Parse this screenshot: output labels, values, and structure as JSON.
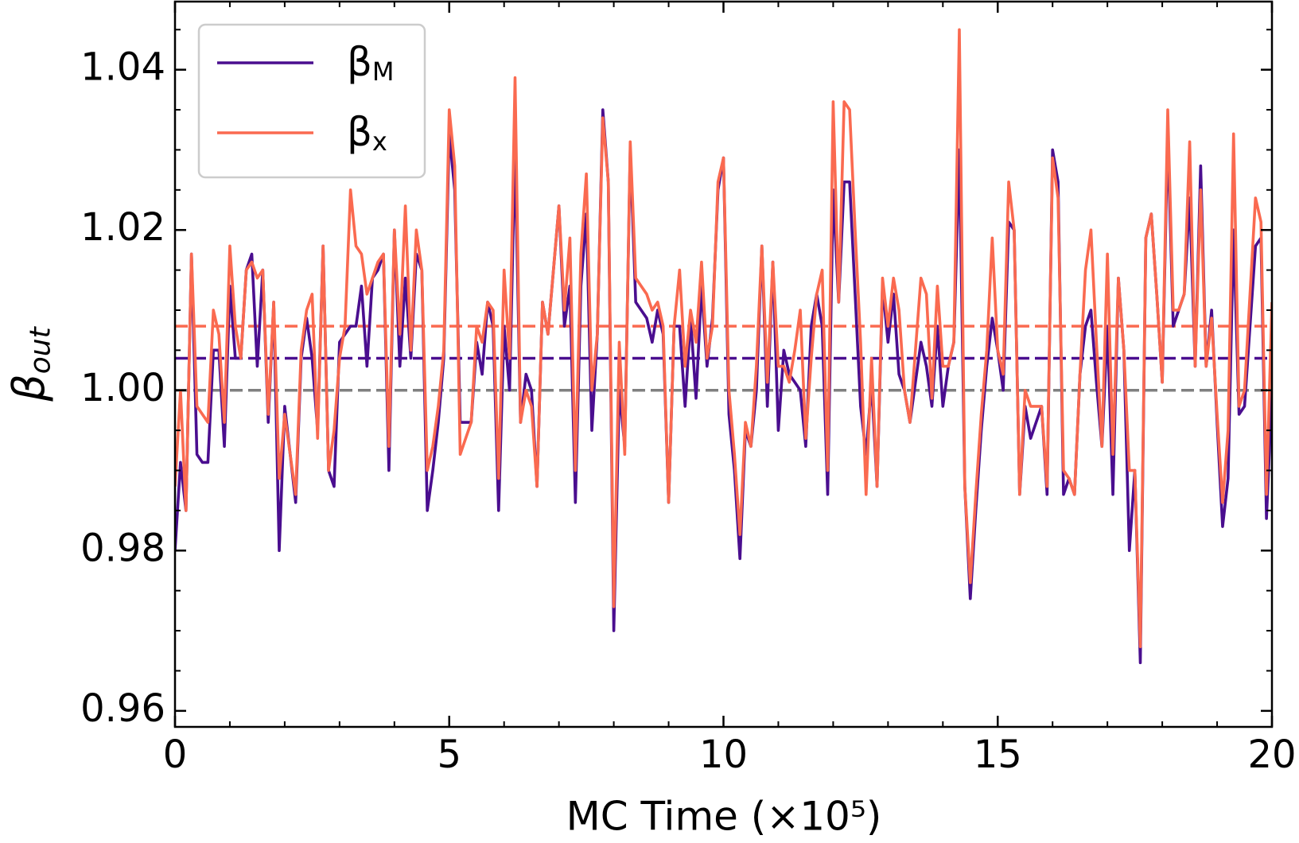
{
  "chart_data": {
    "type": "line",
    "xlabel": "MC Time (×10⁵)",
    "ylabel": "βout",
    "xlim": [
      0,
      20
    ],
    "ylim": [
      0.958,
      1.0485
    ],
    "xticks": [
      0,
      5,
      10,
      15,
      20
    ],
    "yticks": [
      0.96,
      0.98,
      {
        "value": 1,
        "label": "1.00"
      },
      1.02,
      1.04
    ],
    "xminorticks": [
      1,
      2,
      3,
      4,
      6,
      7,
      8,
      9,
      11,
      12,
      13,
      14,
      16,
      17,
      18,
      19
    ],
    "yminorticks": [
      0.965,
      0.97,
      0.975,
      0.985,
      0.99,
      0.995,
      1.005,
      1.01,
      1.015,
      1.025,
      1.03,
      1.035,
      1.045
    ],
    "legend": "upper left",
    "hlines": [
      {
        "value": 1.0,
        "color": "#808080"
      },
      {
        "value": 1.004,
        "color": "#4a0e8f"
      },
      {
        "value": 1.008,
        "color": "#fa6a50"
      }
    ],
    "x": [
      0,
      0.1,
      0.2,
      0.3,
      0.4,
      0.5,
      0.6,
      0.7,
      0.8,
      0.9,
      1,
      1.1,
      1.2,
      1.3,
      1.4,
      1.5,
      1.6,
      1.7,
      1.8,
      1.9,
      2,
      2.1,
      2.2,
      2.3,
      2.4,
      2.5,
      2.6,
      2.7,
      2.8,
      2.9,
      3,
      3.1,
      3.2,
      3.3,
      3.4,
      3.5,
      3.6,
      3.7,
      3.8,
      3.9,
      4,
      4.1,
      4.2,
      4.3,
      4.4,
      4.5,
      4.6,
      4.7,
      4.8,
      4.9,
      5,
      5.1,
      5.2,
      5.3,
      5.4,
      5.5,
      5.6,
      5.7,
      5.8,
      5.9,
      6,
      6.1,
      6.2,
      6.3,
      6.4,
      6.5,
      6.6,
      6.7,
      6.8,
      6.9,
      7,
      7.1,
      7.2,
      7.3,
      7.4,
      7.5,
      7.6,
      7.7,
      7.8,
      7.9,
      8,
      8.1,
      8.2,
      8.3,
      8.4,
      8.5,
      8.6,
      8.7,
      8.8,
      8.9,
      9,
      9.1,
      9.2,
      9.3,
      9.4,
      9.5,
      9.6,
      9.7,
      9.8,
      9.9,
      10,
      10.1,
      10.2,
      10.3,
      10.4,
      10.5,
      10.6,
      10.7,
      10.8,
      10.9,
      11,
      11.1,
      11.2,
      11.3,
      11.4,
      11.5,
      11.6,
      11.7,
      11.8,
      11.9,
      12,
      12.1,
      12.2,
      12.3,
      12.4,
      12.5,
      12.6,
      12.7,
      12.8,
      12.9,
      13,
      13.1,
      13.2,
      13.3,
      13.4,
      13.5,
      13.6,
      13.7,
      13.8,
      13.9,
      14,
      14.1,
      14.2,
      14.3,
      14.4,
      14.5,
      14.6,
      14.7,
      14.8,
      14.9,
      15,
      15.1,
      15.2,
      15.3,
      15.4,
      15.5,
      15.6,
      15.7,
      15.8,
      15.9,
      16,
      16.1,
      16.2,
      16.3,
      16.4,
      16.5,
      16.6,
      16.7,
      16.8,
      16.9,
      17,
      17.1,
      17.2,
      17.3,
      17.4,
      17.5,
      17.6,
      17.7,
      17.8,
      17.9,
      18,
      18.1,
      18.2,
      18.3,
      18.4,
      18.5,
      18.6,
      18.7,
      18.8,
      18.9,
      19,
      19.1,
      19.2,
      19.3,
      19.4,
      19.5,
      19.6,
      19.7,
      19.8,
      19.9,
      20
    ],
    "series": [
      {
        "name": "βM",
        "color": "#4a0e8f",
        "values": [
          0.98,
          0.991,
          0.985,
          1.017,
          0.992,
          0.991,
          0.991,
          1.005,
          1.005,
          0.993,
          1.013,
          1.004,
          1.004,
          1.015,
          1.017,
          1.003,
          1.015,
          0.996,
          1.011,
          0.98,
          0.998,
          0.992,
          0.986,
          1.004,
          1.009,
          1.004,
          0.995,
          1.018,
          0.99,
          0.988,
          1.006,
          1.007,
          1.008,
          1.008,
          1.013,
          1.003,
          1.014,
          1.015,
          1.017,
          0.99,
          1.02,
          1.003,
          1.014,
          1.004,
          1.017,
          1.015,
          0.985,
          0.99,
          0.996,
          1.004,
          1.032,
          1.025,
          0.996,
          0.996,
          0.996,
          1.006,
          1.002,
          1.011,
          1.008,
          0.985,
          1.008,
          1.0,
          1.03,
          0.996,
          1.002,
          1.0,
          0.988,
          1.011,
          1.007,
          1.015,
          1.023,
          1.008,
          1.013,
          0.986,
          1.013,
          1.022,
          0.995,
          1.007,
          1.035,
          1.026,
          0.97,
          1.0,
          0.993,
          1.03,
          1.011,
          1.01,
          1.009,
          1.006,
          1.01,
          1.007,
          0.986,
          1.008,
          1.008,
          0.998,
          1.009,
          0.999,
          1.013,
          1.003,
          1.009,
          1.025,
          1.029,
          0.997,
          0.99,
          0.979,
          0.995,
          0.993,
          1.0,
          1.018,
          0.998,
          1.016,
          0.995,
          1.005,
          1.002,
          1.001,
          1.0,
          0.993,
          1.008,
          1.012,
          1.008,
          0.987,
          1.025,
          1.011,
          1.026,
          1.026,
          1.012,
          0.998,
          0.992,
          1.001,
          0.988,
          1.013,
          1.006,
          1.012,
          1.002,
          1.0,
          0.996,
          1.001,
          1.006,
          1.003,
          0.998,
          1.008,
          0.998,
          1.003,
          1.006,
          1.03,
          0.988,
          0.974,
          0.985,
          0.995,
          1.003,
          1.009,
          1.005,
          1.0,
          1.021,
          1.02,
          0.987,
          0.998,
          0.994,
          0.996,
          0.998,
          0.987,
          1.03,
          1.026,
          0.987,
          0.989,
          0.987,
          1.002,
          1.008,
          1.01,
          1.001,
          0.993,
          1.008,
          0.987,
          1.014,
          1.005,
          0.98,
          0.99,
          0.966,
          1.019,
          1.022,
          1.012,
          1.001,
          1.032,
          1.008,
          1.01,
          1.012,
          1.024,
          1.003,
          1.028,
          1.003,
          1.01,
          0.996,
          0.983,
          0.989,
          1.02,
          0.997,
          0.998,
          1.008,
          1.018,
          1.019,
          0.984,
          1.0
        ]
      },
      {
        "name": "βx",
        "color": "#fa6a50",
        "values": [
          0.988,
          1.0,
          0.985,
          1.017,
          0.998,
          0.997,
          0.996,
          1.01,
          1.007,
          0.996,
          1.018,
          1.008,
          1.004,
          1.015,
          1.016,
          1.014,
          1.015,
          0.997,
          1.011,
          0.989,
          0.997,
          0.992,
          0.987,
          1.005,
          1.01,
          1.012,
          0.994,
          1.018,
          0.99,
          0.995,
          1.004,
          1.008,
          1.025,
          1.018,
          1.017,
          1.012,
          1.014,
          1.016,
          1.017,
          0.993,
          1.02,
          1.007,
          1.023,
          1.005,
          1.02,
          1.015,
          0.99,
          0.993,
          0.998,
          1.005,
          1.035,
          1.028,
          0.992,
          0.994,
          0.996,
          1.008,
          1.006,
          1.011,
          1.01,
          0.989,
          1.015,
          1.004,
          1.039,
          0.996,
          1.0,
          0.998,
          0.988,
          1.011,
          1.007,
          1.015,
          1.023,
          1.01,
          1.019,
          0.99,
          1.017,
          1.027,
          1.0,
          1.007,
          1.034,
          1.026,
          0.973,
          1.006,
          0.992,
          1.031,
          1.014,
          1.013,
          1.012,
          1.01,
          1.011,
          1.008,
          0.986,
          1.008,
          1.015,
          1.003,
          1.01,
          1.006,
          1.016,
          1.004,
          1.008,
          1.026,
          1.029,
          1.0,
          0.992,
          0.982,
          0.996,
          0.993,
          1.003,
          1.018,
          1.001,
          1.016,
          1.003,
          1.003,
          1.001,
          1.005,
          1.01,
          0.994,
          1.004,
          1.012,
          1.015,
          0.99,
          1.036,
          1.011,
          1.036,
          1.035,
          1.02,
          1.006,
          0.987,
          1.004,
          0.988,
          1.014,
          1.008,
          1.014,
          1.01,
          1.0,
          0.996,
          1.005,
          1.014,
          1.012,
          0.999,
          1.013,
          1.003,
          1.003,
          1.006,
          1.045,
          0.988,
          0.976,
          0.987,
          0.997,
          1.005,
          1.019,
          1.005,
          1.002,
          1.026,
          1.02,
          0.987,
          1.0,
          0.998,
          0.998,
          0.998,
          0.988,
          1.029,
          1.024,
          0.99,
          0.989,
          0.987,
          1.002,
          1.015,
          1.02,
          1.006,
          0.993,
          1.017,
          0.992,
          1.014,
          1.005,
          0.99,
          0.99,
          0.968,
          1.019,
          1.022,
          1.012,
          1.001,
          1.035,
          1.01,
          1.01,
          1.012,
          1.031,
          1.003,
          1.025,
          1.003,
          1.009,
          0.997,
          0.986,
          0.995,
          1.032,
          0.998,
          1.0,
          1.012,
          1.024,
          1.021,
          0.987,
          1.011
        ]
      }
    ]
  }
}
